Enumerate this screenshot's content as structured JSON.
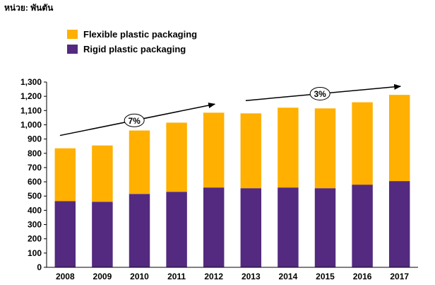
{
  "unit_label": "หน่วย: พันตัน",
  "colors": {
    "flexible": "#FFB000",
    "rigid": "#532A7F",
    "axis": "#000000"
  },
  "legend": [
    {
      "label": "Flexible plastic packaging",
      "color": "#FFB000"
    },
    {
      "label": "Rigid plastic packaging",
      "color": "#532A7F"
    }
  ],
  "annotations": [
    {
      "text": "7%",
      "from": "2008",
      "to": "2012"
    },
    {
      "text": "3%",
      "from": "2013",
      "to": "2017"
    }
  ],
  "chart_data": {
    "type": "bar",
    "stacked": true,
    "categories": [
      "2008",
      "2009",
      "2010",
      "2011",
      "2012",
      "2013",
      "2014",
      "2015",
      "2016",
      "2017"
    ],
    "series": [
      {
        "name": "Rigid plastic packaging",
        "values": [
          465,
          460,
          515,
          530,
          560,
          555,
          560,
          555,
          580,
          605
        ]
      },
      {
        "name": "Flexible plastic packaging",
        "values": [
          370,
          395,
          445,
          485,
          525,
          525,
          560,
          560,
          578,
          605
        ]
      }
    ],
    "ylim": [
      0,
      1300
    ],
    "yticks": [
      0,
      100,
      200,
      300,
      400,
      500,
      600,
      700,
      800,
      900,
      1000,
      1100,
      1200,
      1300
    ],
    "ytick_labels": [
      "0",
      "100",
      "200",
      "300",
      "400",
      "500",
      "600",
      "700",
      "800",
      "900",
      "1,000",
      "1,100",
      "1,200",
      "1,300"
    ],
    "grid": false,
    "legend_position": "top-left"
  }
}
